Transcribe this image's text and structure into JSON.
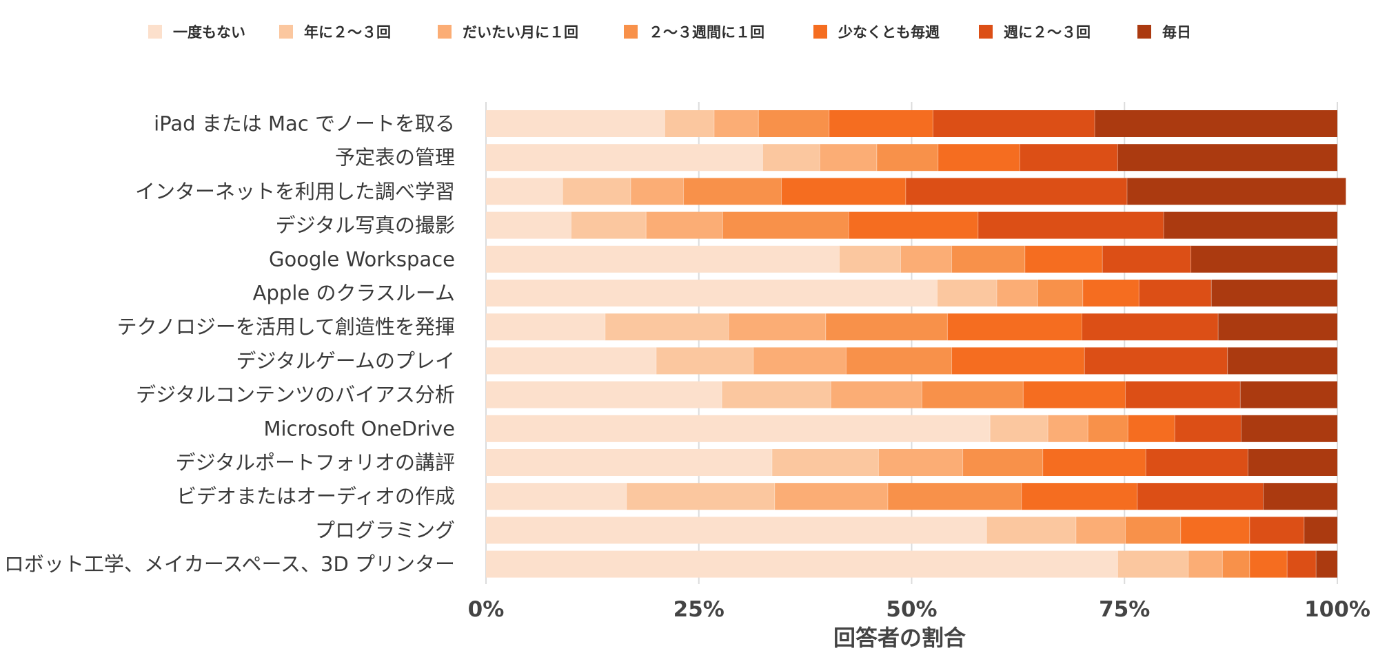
{
  "chart_data": {
    "type": "bar",
    "orientation": "horizontal",
    "stacked": true,
    "percent_stacked": true,
    "title": "",
    "xlabel": "回答者の割合",
    "ylabel": "",
    "xlim": [
      0,
      1
    ],
    "x_ticks": [
      0,
      0.25,
      0.5,
      0.75,
      1
    ],
    "x_tick_labels": [
      "0%",
      "25%",
      "50%",
      "75%",
      "100%"
    ],
    "grid": "vertical",
    "legend_position": "top",
    "categories": [
      "iPad または Mac でノートを取る",
      "予定表の管理",
      "インターネットを利用した調べ学習",
      "デジタル写真の撮影",
      "Google Workspace",
      "Apple のクラスルーム",
      "テクノロジーを活用して創造性を発揮",
      "デジタルゲームのプレイ",
      "デジタルコンテンツのバイアス分析",
      "Microsoft OneDrive",
      "デジタルポートフォリオの講評",
      "ビデオまたはオーディオの作成",
      "プログラミング",
      "ロボット工学、メイカースペース、3D プリンター"
    ],
    "series": [
      {
        "name": "一度もない",
        "color": "#fce0cc",
        "values": [
          0.21,
          0.325,
          0.09,
          0.1,
          0.415,
          0.53,
          0.14,
          0.2,
          0.277,
          0.592,
          0.336,
          0.165,
          0.588,
          0.742
        ]
      },
      {
        "name": "年に２〜３回",
        "color": "#fbc79f",
        "values": [
          0.058,
          0.067,
          0.08,
          0.088,
          0.072,
          0.07,
          0.145,
          0.114,
          0.128,
          0.068,
          0.125,
          0.174,
          0.105,
          0.083
        ]
      },
      {
        "name": "だいたい月に１回",
        "color": "#fbad75",
        "values": [
          0.052,
          0.067,
          0.062,
          0.09,
          0.06,
          0.048,
          0.114,
          0.109,
          0.107,
          0.047,
          0.099,
          0.133,
          0.058,
          0.04
        ]
      },
      {
        "name": "２〜３週間に１回",
        "color": "#f8914a",
        "values": [
          0.083,
          0.072,
          0.115,
          0.148,
          0.086,
          0.053,
          0.143,
          0.124,
          0.119,
          0.047,
          0.094,
          0.157,
          0.065,
          0.032
        ]
      },
      {
        "name": "少なくとも毎週",
        "color": "#f56d20",
        "values": [
          0.122,
          0.096,
          0.146,
          0.152,
          0.091,
          0.066,
          0.158,
          0.156,
          0.12,
          0.055,
          0.121,
          0.136,
          0.081,
          0.044
        ]
      },
      {
        "name": "週に２〜３回",
        "color": "#dc4f16",
        "values": [
          0.19,
          0.115,
          0.26,
          0.218,
          0.104,
          0.085,
          0.16,
          0.168,
          0.135,
          0.078,
          0.12,
          0.148,
          0.064,
          0.034
        ]
      },
      {
        "name": "毎日",
        "color": "#ab3a10",
        "values": [
          0.285,
          0.258,
          0.257,
          0.204,
          0.172,
          0.148,
          0.14,
          0.129,
          0.114,
          0.113,
          0.105,
          0.087,
          0.039,
          0.025
        ]
      }
    ]
  }
}
